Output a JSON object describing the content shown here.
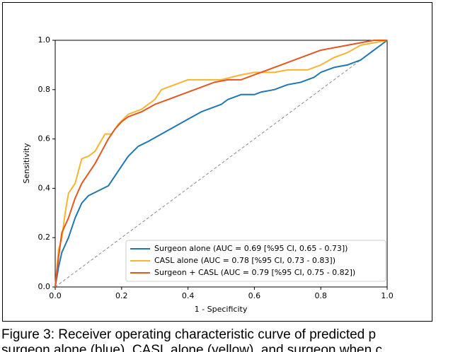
{
  "chart_data": {
    "type": "line",
    "x_label": "1 - Specificity",
    "y_label": "Sensitivity",
    "xlim": [
      0,
      1
    ],
    "ylim": [
      0,
      1
    ],
    "xticks": [
      {
        "value": 0,
        "label": "0.0"
      },
      0.2,
      0.4,
      0.6,
      0.8,
      {
        "value": 1,
        "label": "1.0"
      }
    ],
    "yticks": [
      {
        "value": 0,
        "label": "0.0"
      },
      0.2,
      0.4,
      0.6,
      0.8,
      {
        "value": 1,
        "label": "1.0"
      }
    ],
    "grid": false,
    "legend": "lower right",
    "series": [
      {
        "name": "Surgeon alone (AUC = 0.69 [%95 CI, 0.65 - 0.73])",
        "color": "#1f77b4",
        "x": [
          0,
          0.01,
          0.02,
          0.04,
          0.06,
          0.08,
          0.1,
          0.13,
          0.16,
          0.18,
          0.2,
          0.22,
          0.25,
          0.28,
          0.32,
          0.36,
          0.4,
          0.44,
          0.48,
          0.5,
          0.52,
          0.56,
          0.6,
          0.62,
          0.66,
          0.7,
          0.74,
          0.78,
          0.8,
          0.84,
          0.88,
          0.92,
          0.96,
          1
        ],
        "values": [
          0,
          0.08,
          0.14,
          0.2,
          0.28,
          0.34,
          0.37,
          0.39,
          0.41,
          0.45,
          0.49,
          0.53,
          0.57,
          0.59,
          0.62,
          0.65,
          0.68,
          0.71,
          0.73,
          0.74,
          0.76,
          0.78,
          0.78,
          0.79,
          0.8,
          0.82,
          0.83,
          0.85,
          0.87,
          0.89,
          0.9,
          0.92,
          0.96,
          1
        ]
      },
      {
        "name": "CASL alone (AUC = 0.78 [%95 CI, 0.73 - 0.83])",
        "color": "#f7b431",
        "x": [
          0,
          0.01,
          0.02,
          0.03,
          0.04,
          0.06,
          0.08,
          0.1,
          0.12,
          0.15,
          0.17,
          0.19,
          0.22,
          0.26,
          0.3,
          0.32,
          0.36,
          0.4,
          0.45,
          0.5,
          0.56,
          0.6,
          0.66,
          0.7,
          0.76,
          0.8,
          0.84,
          0.88,
          0.92,
          0.96,
          1
        ],
        "values": [
          0,
          0.15,
          0.2,
          0.3,
          0.38,
          0.42,
          0.52,
          0.53,
          0.55,
          0.62,
          0.62,
          0.66,
          0.7,
          0.72,
          0.76,
          0.8,
          0.82,
          0.84,
          0.84,
          0.84,
          0.86,
          0.87,
          0.87,
          0.88,
          0.88,
          0.9,
          0.93,
          0.95,
          0.98,
          0.99,
          1
        ]
      },
      {
        "name": "Surgeon + CASL (AUC = 0.79 [%95 CI, 0.75 - 0.82])",
        "color": "#e4571e",
        "x": [
          0,
          0.01,
          0.02,
          0.04,
          0.06,
          0.08,
          0.1,
          0.12,
          0.14,
          0.16,
          0.18,
          0.2,
          0.22,
          0.26,
          0.3,
          0.34,
          0.38,
          0.42,
          0.48,
          0.52,
          0.56,
          0.6,
          0.64,
          0.68,
          0.72,
          0.76,
          0.8,
          0.84,
          0.88,
          0.92,
          0.96,
          1
        ],
        "values": [
          0,
          0.12,
          0.22,
          0.28,
          0.36,
          0.42,
          0.46,
          0.5,
          0.55,
          0.6,
          0.64,
          0.67,
          0.69,
          0.71,
          0.74,
          0.76,
          0.78,
          0.8,
          0.83,
          0.84,
          0.84,
          0.86,
          0.88,
          0.9,
          0.92,
          0.94,
          0.96,
          0.97,
          0.98,
          0.99,
          1,
          1
        ]
      }
    ]
  },
  "caption": [
    "Figure 3:  Receiver operating characteristic curve of predicted p",
    "surgeon alone (blue), CASL alone (yellow), and surgeon when c"
  ]
}
